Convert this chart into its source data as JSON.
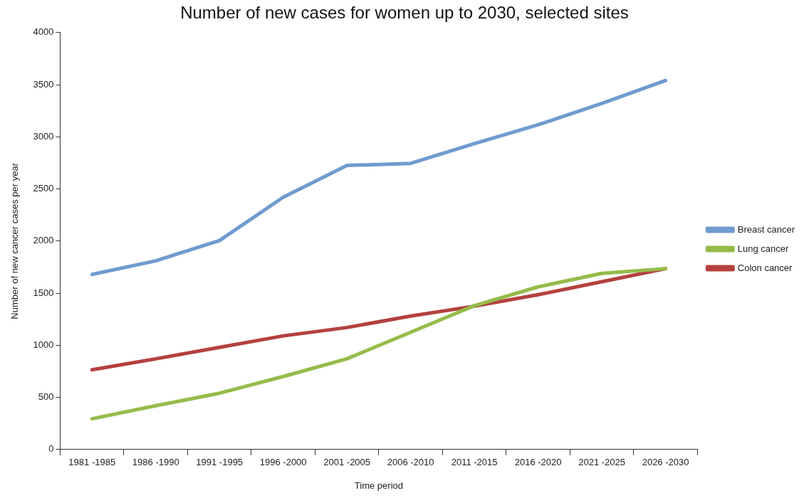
{
  "chart_data": {
    "type": "line",
    "title": "Number of new cases for women up to 2030, selected sites",
    "xlabel": "Time period",
    "ylabel": "Number of new cancer cases per year",
    "categories": [
      "1981 -1985",
      "1986 -1990",
      "1991 -1995",
      "1996 -2000",
      "2001 -2005",
      "2006 -2010",
      "2011 -2015",
      "2016 -2020",
      "2021 -2025",
      "2026 -2030"
    ],
    "series": [
      {
        "name": "Breast cancer",
        "color": "#6f9bcf",
        "values": [
          1680,
          1810,
          2005,
          2420,
          2725,
          2745,
          2935,
          3115,
          3320,
          3540
        ]
      },
      {
        "name": "Lung cancer",
        "color": "#95bc4a",
        "values": [
          295,
          420,
          540,
          700,
          870,
          1125,
          1380,
          1560,
          1690,
          1735
        ]
      },
      {
        "name": "Colon cancer",
        "color": "#b4413e",
        "values": [
          765,
          870,
          980,
          1090,
          1170,
          1280,
          1375,
          1485,
          1610,
          1735
        ]
      }
    ],
    "ylim": [
      0,
      4000
    ],
    "yticks": [
      0,
      500,
      1000,
      1500,
      2000,
      2500,
      3000,
      3500,
      4000
    ],
    "grid": false,
    "legend": "right",
    "marker": "none",
    "line_style": "solid"
  }
}
